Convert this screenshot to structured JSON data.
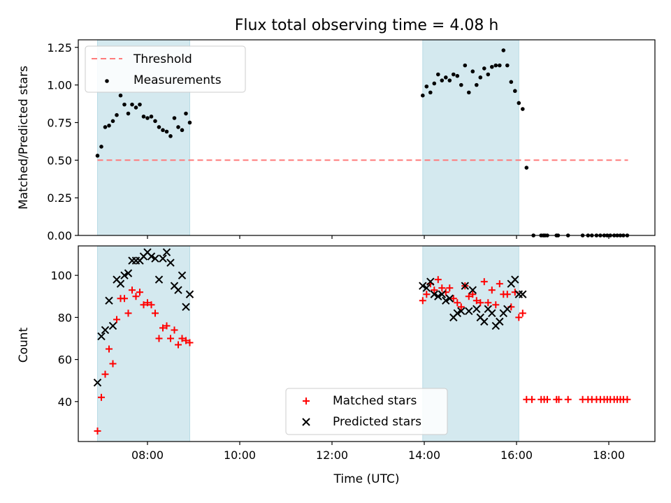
{
  "chart_data": [
    {
      "type": "scatter",
      "title": "Flux total observing time = 4.08 h",
      "xlabel": "",
      "ylabel": "Matched/Predicted stars",
      "xlim": [
        "06:30",
        "19:00"
      ],
      "ylim": [
        0,
        1.3
      ],
      "yticks": [
        "0.00",
        "0.25",
        "0.50",
        "0.75",
        "1.00",
        "1.25"
      ],
      "legend_position": "top-left",
      "shaded_intervals": [
        [
          "06:55",
          "08:55"
        ],
        [
          "13:58",
          "16:03"
        ]
      ],
      "threshold": {
        "name": "Threshold",
        "y": 0.5,
        "x_start": "06:55",
        "x_end": "18:25",
        "color": "#ff7b7b",
        "style": "dashed"
      },
      "series": [
        {
          "name": "Measurements",
          "marker": "dot",
          "color": "#000000",
          "points": [
            [
              "06:55",
              0.53
            ],
            [
              "07:00",
              0.59
            ],
            [
              "07:05",
              0.72
            ],
            [
              "07:10",
              0.73
            ],
            [
              "07:15",
              0.76
            ],
            [
              "07:20",
              0.8
            ],
            [
              "07:25",
              0.93
            ],
            [
              "07:30",
              0.87
            ],
            [
              "07:35",
              0.81
            ],
            [
              "07:40",
              0.87
            ],
            [
              "07:45",
              0.85
            ],
            [
              "07:50",
              0.87
            ],
            [
              "07:55",
              0.79
            ],
            [
              "08:00",
              0.78
            ],
            [
              "08:05",
              0.79
            ],
            [
              "08:10",
              0.76
            ],
            [
              "08:15",
              0.72
            ],
            [
              "08:20",
              0.7
            ],
            [
              "08:25",
              0.69
            ],
            [
              "08:30",
              0.66
            ],
            [
              "08:35",
              0.78
            ],
            [
              "08:40",
              0.72
            ],
            [
              "08:45",
              0.7
            ],
            [
              "08:50",
              0.81
            ],
            [
              "08:55",
              0.75
            ],
            [
              "13:58",
              0.93
            ],
            [
              "14:03",
              0.99
            ],
            [
              "14:08",
              0.95
            ],
            [
              "14:13",
              1.01
            ],
            [
              "14:18",
              1.07
            ],
            [
              "14:23",
              1.03
            ],
            [
              "14:28",
              1.05
            ],
            [
              "14:33",
              1.03
            ],
            [
              "14:38",
              1.07
            ],
            [
              "14:43",
              1.06
            ],
            [
              "14:48",
              1.0
            ],
            [
              "14:53",
              1.13
            ],
            [
              "14:58",
              0.95
            ],
            [
              "15:03",
              1.09
            ],
            [
              "15:08",
              1.0
            ],
            [
              "15:13",
              1.05
            ],
            [
              "15:18",
              1.11
            ],
            [
              "15:23",
              1.07
            ],
            [
              "15:28",
              1.12
            ],
            [
              "15:33",
              1.13
            ],
            [
              "15:38",
              1.13
            ],
            [
              "15:43",
              1.23
            ],
            [
              "15:48",
              1.13
            ],
            [
              "15:53",
              1.02
            ],
            [
              "15:58",
              0.96
            ],
            [
              "16:03",
              0.88
            ],
            [
              "16:08",
              0.84
            ],
            [
              "16:13",
              0.45
            ],
            [
              "16:22",
              0.0
            ],
            [
              "16:32",
              0.0
            ],
            [
              "16:35",
              0.0
            ],
            [
              "16:37",
              0.0
            ],
            [
              "16:40",
              0.0
            ],
            [
              "16:52",
              0.0
            ],
            [
              "16:54",
              0.0
            ],
            [
              "17:07",
              0.0
            ],
            [
              "17:26",
              0.0
            ],
            [
              "17:33",
              0.0
            ],
            [
              "17:38",
              0.0
            ],
            [
              "17:44",
              0.0
            ],
            [
              "17:49",
              0.0
            ],
            [
              "17:54",
              0.0
            ],
            [
              "17:58",
              0.0
            ],
            [
              "18:02",
              0.0
            ],
            [
              "18:07",
              0.0
            ],
            [
              "18:11",
              0.0
            ],
            [
              "18:15",
              0.0
            ],
            [
              "18:19",
              0.0
            ],
            [
              "18:24",
              0.0
            ]
          ]
        }
      ]
    },
    {
      "type": "scatter",
      "xlabel": "Time (UTC)",
      "ylabel": "Count",
      "xlim": [
        "06:30",
        "19:00"
      ],
      "ylim": [
        21,
        114
      ],
      "xticks": [
        "08:00",
        "10:00",
        "12:00",
        "14:00",
        "16:00",
        "18:00"
      ],
      "yticks": [
        "40",
        "60",
        "80",
        "100"
      ],
      "legend_position": "bottom-center",
      "shaded_intervals": [
        [
          "06:55",
          "08:55"
        ],
        [
          "13:58",
          "16:03"
        ]
      ],
      "series": [
        {
          "name": "Matched stars",
          "marker": "plus",
          "color": "#ff0000",
          "points": [
            [
              "06:55",
              26
            ],
            [
              "07:00",
              42
            ],
            [
              "07:05",
              53
            ],
            [
              "07:10",
              65
            ],
            [
              "07:15",
              58
            ],
            [
              "07:20",
              79
            ],
            [
              "07:25",
              89
            ],
            [
              "07:30",
              89
            ],
            [
              "07:35",
              82
            ],
            [
              "07:40",
              93
            ],
            [
              "07:45",
              90
            ],
            [
              "07:50",
              92
            ],
            [
              "07:55",
              86
            ],
            [
              "08:00",
              87
            ],
            [
              "08:05",
              86
            ],
            [
              "08:10",
              82
            ],
            [
              "08:15",
              70
            ],
            [
              "08:20",
              75
            ],
            [
              "08:25",
              76
            ],
            [
              "08:30",
              70
            ],
            [
              "08:35",
              74
            ],
            [
              "08:40",
              67
            ],
            [
              "08:45",
              70
            ],
            [
              "08:50",
              69
            ],
            [
              "08:55",
              68
            ],
            [
              "13:58",
              88
            ],
            [
              "14:03",
              91
            ],
            [
              "14:08",
              96
            ],
            [
              "14:13",
              93
            ],
            [
              "14:18",
              98
            ],
            [
              "14:23",
              94
            ],
            [
              "14:28",
              92
            ],
            [
              "14:33",
              94
            ],
            [
              "14:38",
              89
            ],
            [
              "14:43",
              87
            ],
            [
              "14:48",
              85
            ],
            [
              "14:53",
              95
            ],
            [
              "14:58",
              90
            ],
            [
              "15:03",
              91
            ],
            [
              "15:08",
              88
            ],
            [
              "15:13",
              87
            ],
            [
              "15:18",
              97
            ],
            [
              "15:23",
              87
            ],
            [
              "15:28",
              93
            ],
            [
              "15:33",
              86
            ],
            [
              "15:38",
              96
            ],
            [
              "15:43",
              91
            ],
            [
              "15:48",
              91
            ],
            [
              "15:53",
              85
            ],
            [
              "15:58",
              92
            ],
            [
              "16:03",
              80
            ],
            [
              "16:08",
              82
            ],
            [
              "16:13",
              41
            ],
            [
              "16:20",
              41
            ],
            [
              "16:32",
              41
            ],
            [
              "16:36",
              41
            ],
            [
              "16:40",
              41
            ],
            [
              "16:52",
              41
            ],
            [
              "16:55",
              41
            ],
            [
              "17:07",
              41
            ],
            [
              "17:26",
              41
            ],
            [
              "17:33",
              41
            ],
            [
              "17:38",
              41
            ],
            [
              "17:44",
              41
            ],
            [
              "17:49",
              41
            ],
            [
              "17:54",
              41
            ],
            [
              "17:58",
              41
            ],
            [
              "18:02",
              41
            ],
            [
              "18:07",
              41
            ],
            [
              "18:11",
              41
            ],
            [
              "18:15",
              41
            ],
            [
              "18:19",
              41
            ],
            [
              "18:24",
              41
            ]
          ]
        },
        {
          "name": "Predicted stars",
          "marker": "x",
          "color": "#000000",
          "points": [
            [
              "06:55",
              49
            ],
            [
              "07:00",
              71
            ],
            [
              "07:05",
              74
            ],
            [
              "07:10",
              88
            ],
            [
              "07:15",
              76
            ],
            [
              "07:20",
              98
            ],
            [
              "07:25",
              96
            ],
            [
              "07:30",
              100
            ],
            [
              "07:35",
              101
            ],
            [
              "07:40",
              107
            ],
            [
              "07:45",
              107
            ],
            [
              "07:50",
              107
            ],
            [
              "07:55",
              109
            ],
            [
              "08:00",
              111
            ],
            [
              "08:05",
              109
            ],
            [
              "08:10",
              108
            ],
            [
              "08:15",
              98
            ],
            [
              "08:20",
              108
            ],
            [
              "08:25",
              111
            ],
            [
              "08:30",
              106
            ],
            [
              "08:35",
              95
            ],
            [
              "08:40",
              93
            ],
            [
              "08:45",
              100
            ],
            [
              "08:50",
              85
            ],
            [
              "08:55",
              91
            ],
            [
              "13:58",
              95
            ],
            [
              "14:03",
              94
            ],
            [
              "14:08",
              97
            ],
            [
              "14:13",
              91
            ],
            [
              "14:18",
              90
            ],
            [
              "14:23",
              91
            ],
            [
              "14:28",
              88
            ],
            [
              "14:33",
              89
            ],
            [
              "14:38",
              80
            ],
            [
              "14:43",
              82
            ],
            [
              "14:48",
              83
            ],
            [
              "14:53",
              95
            ],
            [
              "14:58",
              83
            ],
            [
              "15:03",
              93
            ],
            [
              "15:08",
              84
            ],
            [
              "15:13",
              80
            ],
            [
              "15:18",
              78
            ],
            [
              "15:23",
              84
            ],
            [
              "15:28",
              82
            ],
            [
              "15:33",
              76
            ],
            [
              "15:38",
              78
            ],
            [
              "15:43",
              82
            ],
            [
              "15:48",
              84
            ],
            [
              "15:53",
              96
            ],
            [
              "15:58",
              98
            ],
            [
              "16:03",
              91
            ],
            [
              "16:08",
              91
            ]
          ]
        }
      ]
    }
  ]
}
